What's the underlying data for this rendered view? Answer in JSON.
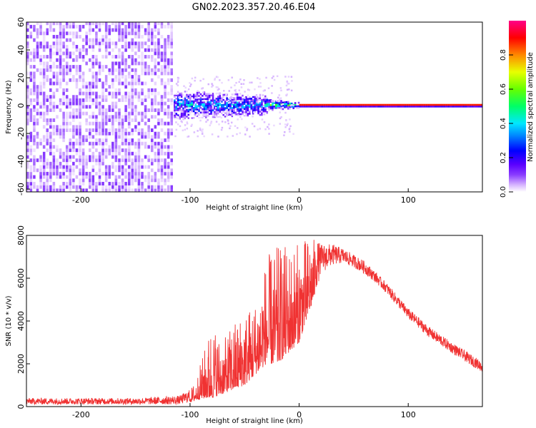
{
  "title": "GN02.2023.357.20.46.E04",
  "chart_data": [
    {
      "type": "heatmap",
      "xlabel": "Height of straight line (km)",
      "ylabel": "Frequency (Hz)",
      "xlim": [
        -250,
        168
      ],
      "ylim": [
        -62,
        60
      ],
      "xticks": [
        -200,
        -100,
        0,
        100
      ],
      "yticks": [
        60,
        40,
        20,
        0,
        -20,
        -40,
        -60
      ],
      "grid": false,
      "colorbar": {
        "label": "Normalized spectral amplitude",
        "range": [
          0,
          1
        ],
        "ticks": [
          0.0,
          0.2,
          0.4,
          0.6,
          0.8
        ],
        "colormap": [
          "#ffffff",
          "#d8b6ff",
          "#8a3cff",
          "#5a00ff",
          "#0000ff",
          "#0088ff",
          "#00e8ff",
          "#00ff66",
          "#66ff00",
          "#e8ff00",
          "#ff8800",
          "#ff0000",
          "#ff0088"
        ]
      },
      "regions": [
        {
          "x": [
            -250,
            -115
          ],
          "freq": [
            -62,
            60
          ],
          "amplitude": 0.15,
          "note": "broadband noise"
        },
        {
          "x": [
            -115,
            -30
          ],
          "freq": [
            -10,
            10
          ],
          "amplitude": 0.4
        },
        {
          "x": [
            -30,
            0
          ],
          "freq": [
            -4,
            4
          ],
          "amplitude": 0.55
        },
        {
          "x": [
            0,
            168
          ],
          "freq": [
            -2,
            2
          ],
          "amplitude": 0.9
        }
      ]
    },
    {
      "type": "line",
      "xlabel": "Height of straight line (km)",
      "ylabel": "SNR (10 * v/v)",
      "xlim": [
        -250,
        168
      ],
      "ylim": [
        0,
        8000
      ],
      "xticks": [
        -200,
        -100,
        0,
        100
      ],
      "yticks": [
        0,
        2000,
        4000,
        6000,
        8000
      ],
      "grid": false,
      "line_color": "#f03232",
      "envelope": {
        "x": [
          -250,
          -200,
          -150,
          -110,
          -100,
          -95,
          -85,
          -80,
          -70,
          -60,
          -50,
          -40,
          -30,
          -20,
          -10,
          0,
          10,
          20,
          30,
          40,
          50,
          60,
          70,
          80,
          90,
          100,
          120,
          140,
          168
        ],
        "low": [
          100,
          100,
          100,
          100,
          200,
          300,
          400,
          400,
          600,
          800,
          1000,
          1500,
          2000,
          2000,
          2500,
          3000,
          4500,
          6200,
          6600,
          6700,
          6500,
          6200,
          5800,
          5300,
          4700,
          4100,
          3200,
          2500,
          1600
        ],
        "high": [
          400,
          400,
          400,
          500,
          800,
          1200,
          3000,
          4000,
          3000,
          4000,
          4500,
          5000,
          7000,
          7500,
          7600,
          7700,
          8000,
          7600,
          7600,
          7400,
          7100,
          6800,
          6300,
          5800,
          5200,
          4600,
          3700,
          3000,
          2100
        ]
      }
    }
  ]
}
